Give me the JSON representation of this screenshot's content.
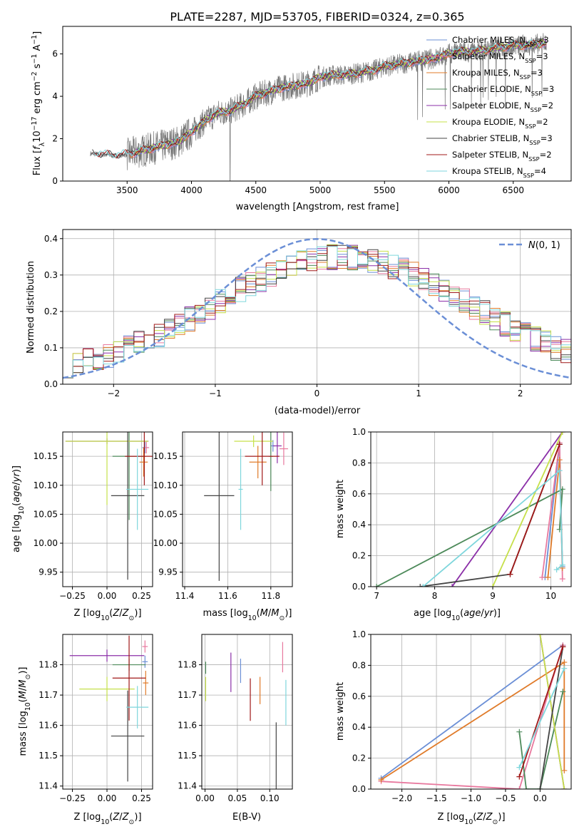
{
  "colors": {
    "Chabrier MILES": "#6b8fd6",
    "Salpeter MILES": "#e8789e",
    "Kroupa MILES": "#e07b2a",
    "Chabrier ELODIE": "#4d8a5a",
    "Salpeter ELODIE": "#8b2fa8",
    "Kroupa ELODIE": "#c6e04a",
    "Chabrier STELIB": "#444444",
    "Salpeter STELIB": "#a01818",
    "Kroupa STELIB": "#7ed6dc"
  },
  "chart_data": [
    {
      "type": "line",
      "title": "PLATE=2287, MJD=53705, FIBERID=0324, z=0.365",
      "xlabel": "wavelength [Angstrom, rest frame]",
      "ylabel": "Flux [f_λ 10^-17 erg cm^-2 s^-1 A^-1]",
      "xlim": [
        3000,
        6950
      ],
      "ylim": [
        0,
        7.3
      ],
      "xticks": [
        3500,
        4000,
        4500,
        5000,
        5500,
        6000,
        6500
      ],
      "yticks": [
        0,
        2,
        4,
        6
      ],
      "grid": false,
      "legend_placement": "top-right",
      "spectrum": {
        "x": [
          3210,
          3300,
          3400,
          3500,
          3600,
          3700,
          3800,
          3900,
          4000,
          4100,
          4200,
          4300,
          4400,
          4500,
          4600,
          4700,
          4800,
          4900,
          5000,
          5100,
          5200,
          5300,
          5400,
          5500,
          5600,
          5700,
          5800,
          5900,
          6000,
          6100,
          6200,
          6300,
          6400,
          6500,
          6600,
          6750
        ],
        "y": [
          1.3,
          1.25,
          1.2,
          1.25,
          1.4,
          1.55,
          1.7,
          1.85,
          2.3,
          2.8,
          3.2,
          3.3,
          3.6,
          4.0,
          4.2,
          4.4,
          4.5,
          4.6,
          4.9,
          5.0,
          5.0,
          5.1,
          5.2,
          5.4,
          5.5,
          5.6,
          5.7,
          5.8,
          6.0,
          6.1,
          6.1,
          6.2,
          6.3,
          6.4,
          6.4,
          6.5
        ]
      },
      "series": [
        {
          "name": "Chabrier MILES",
          "nssp": "3"
        },
        {
          "name": "Salpeter MILES",
          "nssp": "3"
        },
        {
          "name": "Kroupa MILES",
          "nssp": "3"
        },
        {
          "name": "Chabrier ELODIE",
          "nssp": "3"
        },
        {
          "name": "Salpeter ELODIE",
          "nssp": "2"
        },
        {
          "name": "Kroupa ELODIE",
          "nssp": "2"
        },
        {
          "name": "Chabrier STELIB",
          "nssp": "3"
        },
        {
          "name": "Salpeter STELIB",
          "nssp": "2"
        },
        {
          "name": "Kroupa STELIB",
          "nssp": "4"
        }
      ]
    },
    {
      "type": "line",
      "xlabel": "(data-model)/error",
      "ylabel": "Normed distribution",
      "xlim": [
        -2.5,
        2.5
      ],
      "ylim": [
        0,
        0.425
      ],
      "xticks": [
        -2,
        -1,
        0,
        1,
        2
      ],
      "yticks": [
        0.0,
        0.1,
        0.2,
        0.3,
        0.4
      ],
      "grid": true,
      "legend_placement": "top-right",
      "reference_curve": {
        "name": "N(0,1)",
        "style": "dashed"
      }
    },
    {
      "type": "scatter",
      "xlabel": "Z [log10(Z/Z⊙)]",
      "ylabel": "age  [log10(age/yr)]",
      "xlim": [
        -0.32,
        0.33
      ],
      "ylim": [
        9.925,
        10.192
      ],
      "xticks": [
        -0.25,
        0.0,
        0.25
      ],
      "yticks": [
        9.95,
        10.0,
        10.05,
        10.1,
        10.15
      ],
      "grid": true,
      "points": [
        {
          "series": "Chabrier MILES",
          "x": 0.275,
          "y": 10.165,
          "xerr": 0.02,
          "yerr": 0.01
        },
        {
          "series": "Salpeter MILES",
          "x": 0.285,
          "y": 10.165,
          "xerr": 0.02,
          "yerr": 0.01
        },
        {
          "series": "Kroupa MILES",
          "x": 0.265,
          "y": 10.14,
          "xerr": 0.03,
          "yerr": 0.025
        },
        {
          "series": "Chabrier ELODIE",
          "x": 0.16,
          "y": 10.15,
          "xerr": 0.12,
          "yerr": 0.11
        },
        {
          "series": "Salpeter ELODIE",
          "x": 0.0,
          "y": 10.176,
          "xerr": 0.3,
          "yerr": 0.005
        },
        {
          "series": "Kroupa ELODIE",
          "x": 0.0,
          "y": 10.176,
          "xerr": 0.3,
          "yerr": 0.11
        },
        {
          "series": "Chabrier STELIB",
          "x": 0.15,
          "y": 10.082,
          "xerr": 0.12,
          "yerr": 0.145
        },
        {
          "series": "Salpeter STELIB",
          "x": 0.27,
          "y": 10.15,
          "xerr": 0.14,
          "yerr": 0.05
        },
        {
          "series": "Kroupa STELIB",
          "x": 0.22,
          "y": 10.093,
          "xerr": 0.08,
          "yerr": 0.07
        }
      ]
    },
    {
      "type": "scatter",
      "xlabel": "mass [log10(M/M⊙)]",
      "ylabel": "",
      "xlim": [
        11.39,
        11.9
      ],
      "ylim": [
        9.925,
        10.192
      ],
      "xticks": [
        11.4,
        11.6,
        11.8
      ],
      "yticks": [
        9.95,
        10.0,
        10.05,
        10.1,
        10.15
      ],
      "grid": true,
      "points": [
        {
          "series": "Chabrier MILES",
          "x": 11.81,
          "y": 10.168,
          "xerr": 0.01,
          "yerr": 0.01
        },
        {
          "series": "Salpeter MILES",
          "x": 11.86,
          "y": 10.163,
          "xerr": 0.02,
          "yerr": 0.028
        },
        {
          "series": "Kroupa MILES",
          "x": 11.74,
          "y": 10.14,
          "xerr": 0.04,
          "yerr": 0.028
        },
        {
          "series": "Chabrier ELODIE",
          "x": 11.8,
          "y": 10.15,
          "xerr": 0.01,
          "yerr": 0.06
        },
        {
          "series": "Salpeter ELODIE",
          "x": 11.83,
          "y": 10.168,
          "xerr": 0.02,
          "yerr": 0.03
        },
        {
          "series": "Kroupa ELODIE",
          "x": 11.72,
          "y": 10.176,
          "xerr": 0.09,
          "yerr": 0.01
        },
        {
          "series": "Chabrier STELIB",
          "x": 11.56,
          "y": 10.082,
          "xerr": 0.07,
          "yerr": 0.147
        },
        {
          "series": "Salpeter STELIB",
          "x": 11.76,
          "y": 10.15,
          "xerr": 0.08,
          "yerr": 0.05
        },
        {
          "series": "Kroupa STELIB",
          "x": 11.66,
          "y": 10.093,
          "xerr": 0.01,
          "yerr": 0.07
        }
      ]
    },
    {
      "type": "line",
      "xlabel": "age  [log10(age/yr)]",
      "ylabel": "mass weight",
      "xlim": [
        6.9,
        10.35
      ],
      "ylim": [
        0,
        1.0
      ],
      "xticks": [
        7,
        8,
        9,
        10
      ],
      "yticks": [
        0.0,
        0.2,
        0.4,
        0.6,
        0.8,
        1.0
      ],
      "grid": true,
      "series": [
        {
          "name": "Chabrier MILES",
          "x": [
            9.9,
            10.15,
            10.2
          ],
          "y": [
            0.06,
            0.92,
            0.13
          ]
        },
        {
          "name": "Salpeter MILES",
          "x": [
            9.85,
            10.15,
            10.2
          ],
          "y": [
            0.06,
            0.93,
            0.05
          ]
        },
        {
          "name": "Kroupa MILES",
          "x": [
            9.95,
            10.15,
            10.2
          ],
          "y": [
            0.06,
            0.82,
            0.12
          ]
        },
        {
          "name": "Chabrier ELODIE",
          "x": [
            7.0,
            10.2,
            10.15
          ],
          "y": [
            0.0,
            0.63,
            0.37
          ]
        },
        {
          "name": "Salpeter ELODIE",
          "x": [
            8.3,
            10.2
          ],
          "y": [
            0.0,
            1.0
          ]
        },
        {
          "name": "Kroupa ELODIE",
          "x": [
            9.0,
            10.2
          ],
          "y": [
            0.0,
            1.0
          ]
        },
        {
          "name": "Chabrier STELIB",
          "x": [
            7.75,
            9.3,
            10.15
          ],
          "y": [
            0.0,
            0.08,
            0.92
          ]
        },
        {
          "name": "Salpeter STELIB",
          "x": [
            9.3,
            10.15
          ],
          "y": [
            0.08,
            0.92
          ]
        },
        {
          "name": "Kroupa STELIB",
          "x": [
            7.8,
            10.15,
            10.2,
            10.1
          ],
          "y": [
            0.0,
            0.75,
            0.14,
            0.11
          ]
        }
      ]
    },
    {
      "type": "scatter",
      "xlabel": "Z [log10(Z/Z⊙)]",
      "ylabel": "mass [log10(M/M⊙)]",
      "xlim": [
        -0.32,
        0.33
      ],
      "ylim": [
        11.39,
        11.9
      ],
      "xticks": [
        -0.25,
        0.0,
        0.25
      ],
      "yticks": [
        11.4,
        11.5,
        11.6,
        11.7,
        11.8
      ],
      "grid": true,
      "points": [
        {
          "series": "Chabrier MILES",
          "x": 0.275,
          "y": 11.81,
          "xerr": 0.02,
          "yerr": 0.02
        },
        {
          "series": "Salpeter MILES",
          "x": 0.275,
          "y": 11.86,
          "xerr": 0.02,
          "yerr": 0.02
        },
        {
          "series": "Kroupa MILES",
          "x": 0.28,
          "y": 11.74,
          "xerr": 0.02,
          "yerr": 0.04
        },
        {
          "series": "Chabrier ELODIE",
          "x": 0.16,
          "y": 11.8,
          "xerr": 0.12,
          "yerr": 0.02
        },
        {
          "series": "Salpeter ELODIE",
          "x": 0.0,
          "y": 11.83,
          "xerr": 0.27,
          "yerr": 0.02
        },
        {
          "series": "Kroupa ELODIE",
          "x": 0.0,
          "y": 11.72,
          "xerr": 0.2,
          "yerr": 0.04
        },
        {
          "series": "Chabrier STELIB",
          "x": 0.15,
          "y": 11.565,
          "xerr": 0.12,
          "yerr": 0.15
        },
        {
          "series": "Salpeter STELIB",
          "x": 0.16,
          "y": 11.756,
          "xerr": 0.12,
          "yerr": 0.14
        },
        {
          "series": "Kroupa STELIB",
          "x": 0.22,
          "y": 11.66,
          "xerr": 0.08,
          "yerr": 0.07
        }
      ]
    },
    {
      "type": "scatter",
      "xlabel": "E(B-V)",
      "ylabel": "",
      "xlim": [
        -0.005,
        0.135
      ],
      "ylim": [
        11.39,
        11.9
      ],
      "xticks": [
        0.0,
        0.05,
        0.1
      ],
      "yticks": [
        11.4,
        11.5,
        11.6,
        11.7,
        11.8
      ],
      "grid": true,
      "points": [
        {
          "series": "Chabrier MILES",
          "x": 0.055,
          "y": 11.78,
          "xerr": 0.0,
          "yerr": 0.04
        },
        {
          "series": "Salpeter MILES",
          "x": 0.12,
          "y": 11.825,
          "xerr": 0.0,
          "yerr": 0.05
        },
        {
          "series": "Kroupa MILES",
          "x": 0.085,
          "y": 11.715,
          "xerr": 0.0,
          "yerr": 0.045
        },
        {
          "series": "Chabrier ELODIE",
          "x": 0.001,
          "y": 11.79,
          "xerr": 0.0,
          "yerr": 0.02
        },
        {
          "series": "Salpeter ELODIE",
          "x": 0.04,
          "y": 11.775,
          "xerr": 0.0,
          "yerr": 0.065
        },
        {
          "series": "Kroupa ELODIE",
          "x": 0.001,
          "y": 11.72,
          "xerr": 0.0,
          "yerr": 0.04
        },
        {
          "series": "Chabrier STELIB",
          "x": 0.11,
          "y": 11.5,
          "xerr": 0.0,
          "yerr": 0.11
        },
        {
          "series": "Salpeter STELIB",
          "x": 0.07,
          "y": 11.685,
          "xerr": 0.0,
          "yerr": 0.07
        },
        {
          "series": "Kroupa STELIB",
          "x": 0.125,
          "y": 11.675,
          "xerr": 0.0,
          "yerr": 0.075
        }
      ]
    },
    {
      "type": "line",
      "xlabel": "Z [log10(Z/Z⊙)]",
      "ylabel": "mass weight",
      "xlim": [
        -2.45,
        0.45
      ],
      "ylim": [
        0,
        1.0
      ],
      "xticks": [
        -2.0,
        -1.5,
        -1.0,
        -0.5,
        0.0
      ],
      "yticks": [
        0.0,
        0.2,
        0.4,
        0.6,
        0.8,
        1.0
      ],
      "grid": true,
      "series": [
        {
          "name": "Chabrier MILES",
          "x": [
            -2.3,
            0.33
          ],
          "y": [
            0.07,
            0.93
          ]
        },
        {
          "name": "Salpeter MILES",
          "x": [
            -2.3,
            -0.3,
            0.33
          ],
          "y": [
            0.05,
            0.0,
            0.93
          ]
        },
        {
          "name": "Kroupa MILES",
          "x": [
            -2.3,
            0.35,
            0.35
          ],
          "y": [
            0.06,
            0.82,
            0.12
          ]
        },
        {
          "name": "Chabrier ELODIE",
          "x": [
            -0.3,
            -0.2,
            0.0,
            0.33
          ],
          "y": [
            0.37,
            0.0,
            0.0,
            0.63
          ]
        },
        {
          "name": "Salpeter ELODIE",
          "x": [
            0.0,
            0.35
          ],
          "y": [
            1.0,
            0.0
          ]
        },
        {
          "name": "Kroupa ELODIE",
          "x": [
            0.0,
            0.35
          ],
          "y": [
            1.0,
            0.0
          ]
        },
        {
          "name": "Chabrier STELIB",
          "x": [
            0.0,
            0.33
          ],
          "y": [
            0.0,
            0.92
          ]
        },
        {
          "name": "Salpeter STELIB",
          "x": [
            -0.3,
            0.33
          ],
          "y": [
            0.08,
            0.92
          ]
        },
        {
          "name": "Kroupa STELIB",
          "x": [
            -0.3,
            0.35
          ],
          "y": [
            0.14,
            0.78
          ]
        }
      ]
    }
  ]
}
